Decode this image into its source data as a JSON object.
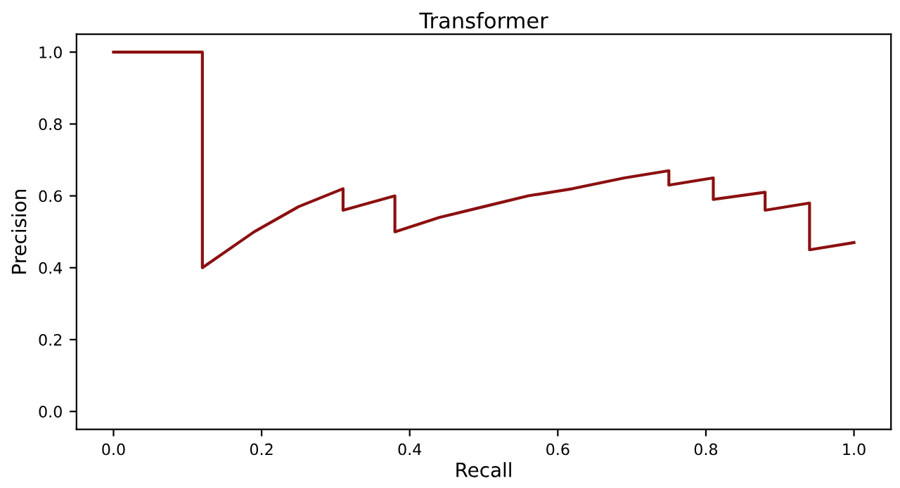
{
  "chart_data": {
    "type": "line",
    "title": "Transformer",
    "xlabel": "Recall",
    "ylabel": "Precision",
    "series": [
      {
        "color": "#8b1010",
        "x": [
          0.0,
          0.12,
          0.12,
          0.19,
          0.25,
          0.31,
          0.31,
          0.38,
          0.38,
          0.44,
          0.5,
          0.56,
          0.62,
          0.69,
          0.75,
          0.75,
          0.81,
          0.81,
          0.88,
          0.88,
          0.94,
          0.94,
          1.0
        ],
        "values": [
          1.0,
          1.0,
          0.4,
          0.5,
          0.57,
          0.62,
          0.56,
          0.6,
          0.5,
          0.54,
          0.57,
          0.6,
          0.62,
          0.65,
          0.67,
          0.63,
          0.65,
          0.59,
          0.61,
          0.56,
          0.58,
          0.45,
          0.47
        ]
      }
    ],
    "xlim": [
      -0.05,
      1.05
    ],
    "ylim": [
      -0.05,
      1.05
    ],
    "xticks": [
      {
        "value": 0,
        "label": "0.0"
      },
      {
        "value": 0.2,
        "label": "0.2"
      },
      {
        "value": 0.4,
        "label": "0.4"
      },
      {
        "value": 0.6,
        "label": "0.6"
      },
      {
        "value": 0.8,
        "label": "0.8"
      },
      {
        "value": 1,
        "label": "1.0"
      }
    ],
    "yticks": [
      {
        "value": 0,
        "label": "0.0"
      },
      {
        "value": 0.2,
        "label": "0.2"
      },
      {
        "value": 0.4,
        "label": "0.4"
      },
      {
        "value": 0.6,
        "label": "0.6"
      },
      {
        "value": 0.8,
        "label": "0.8"
      },
      {
        "value": 1,
        "label": "1.0"
      }
    ],
    "grid": false,
    "marker": "none",
    "line_style": "solid"
  }
}
